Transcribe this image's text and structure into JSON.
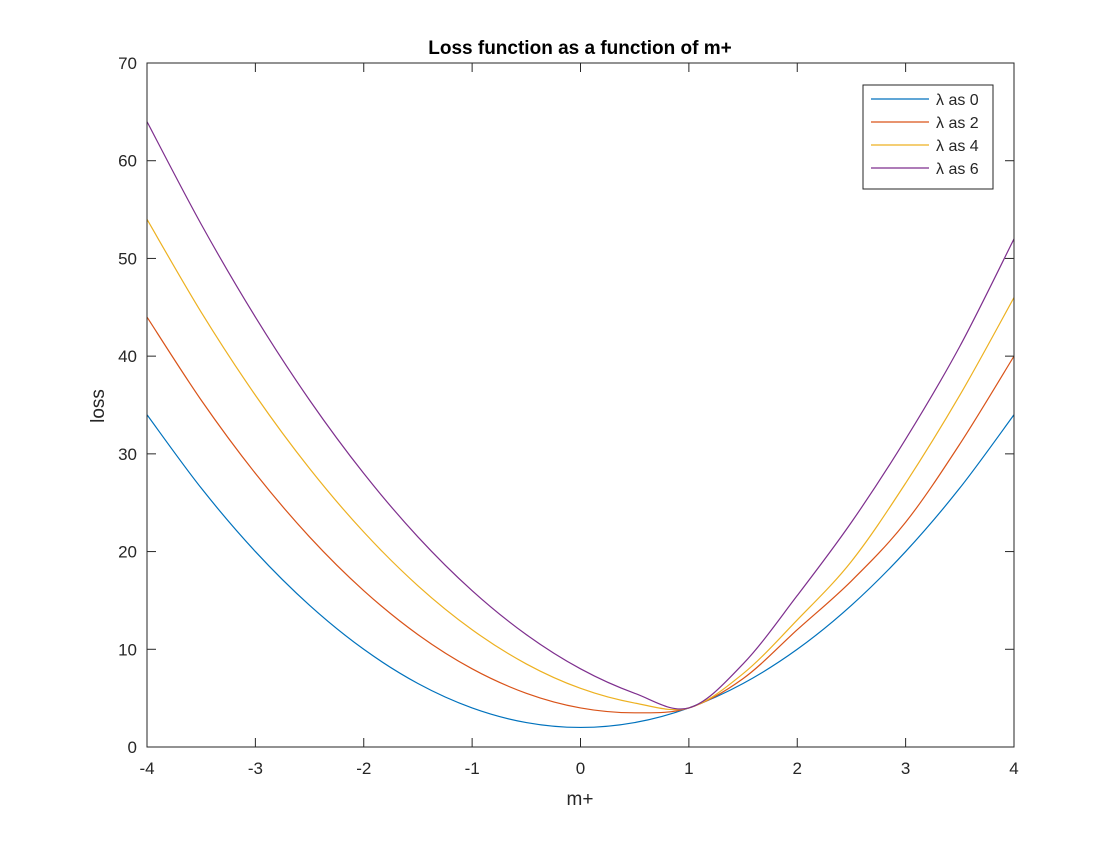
{
  "chart_data": {
    "type": "line",
    "title": "Loss function as a function of m+",
    "xlabel": "m+",
    "ylabel": "loss",
    "xlim": [
      -4,
      4
    ],
    "ylim": [
      0,
      70
    ],
    "xticks": [
      -4,
      -3,
      -2,
      -1,
      0,
      1,
      2,
      3,
      4
    ],
    "yticks": [
      0,
      10,
      20,
      30,
      40,
      50,
      60,
      70
    ],
    "grid": false,
    "legend_position": "top-right",
    "x": [
      -4,
      -3.5,
      -3,
      -2.5,
      -2,
      -1.5,
      -1,
      -0.5,
      0,
      0.5,
      1,
      1.5,
      2,
      2.5,
      3,
      3.5,
      4
    ],
    "series": [
      {
        "name": "λ as 0",
        "color": "#0072BD",
        "values": [
          34,
          26.5,
          20,
          14.5,
          10,
          6.5,
          4,
          2.5,
          2,
          2.5,
          4,
          6.5,
          10,
          14.5,
          20,
          26.5,
          34
        ]
      },
      {
        "name": "λ as 2",
        "color": "#D95319",
        "values": [
          44,
          35.5,
          28,
          21.5,
          16,
          11.5,
          8,
          5.5,
          4,
          3.5,
          4,
          7,
          12,
          17,
          23,
          31,
          40
        ]
      },
      {
        "name": "λ as 4",
        "color": "#EDB120",
        "values": [
          54,
          44.5,
          36,
          28.5,
          22,
          16.5,
          12,
          8.5,
          6,
          4.5,
          4,
          7.5,
          13,
          19,
          27,
          36,
          46
        ]
      },
      {
        "name": "λ as 6",
        "color": "#7E2F8E",
        "values": [
          64,
          53.5,
          44,
          35.5,
          28,
          21.5,
          16,
          11.5,
          8,
          5.5,
          4,
          8.5,
          15.5,
          23,
          31.5,
          41,
          52
        ]
      }
    ]
  }
}
